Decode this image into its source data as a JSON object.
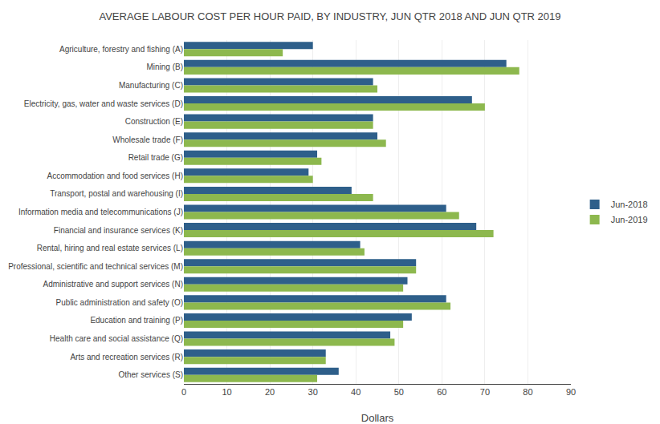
{
  "chart_data": {
    "type": "bar",
    "orientation": "horizontal",
    "title": "AVERAGE LABOUR COST PER HOUR PAID, BY INDUSTRY, JUN QTR 2018 AND JUN QTR 2019",
    "xlabel": "Dollars",
    "categories": [
      "Agriculture, forestry and fishing (A)",
      "Mining (B)",
      "Manufacturing (C)",
      "Electricity, gas, water and waste services (D)",
      "Construction (E)",
      "Wholesale trade (F)",
      "Retail trade (G)",
      "Accommodation and food services (H)",
      "Transport, postal and warehousing (I)",
      "Information media and telecommunications (J)",
      "Financial and insurance services (K)",
      "Rental, hiring and real estate services (L)",
      "Professional, scientific and technical services (M)",
      "Administrative and support services (N)",
      "Public administration and safety (O)",
      "Education and training (P)",
      "Health care and social assistance (Q)",
      "Arts and recreation services (R)",
      "Other services (S)"
    ],
    "series": [
      {
        "name": "Jun-2018",
        "color": "#2E5F8A",
        "values": [
          30,
          75,
          44,
          67,
          44,
          45,
          31,
          29,
          39,
          61,
          68,
          41,
          54,
          52,
          61,
          53,
          48,
          33,
          36
        ]
      },
      {
        "name": "Jun-2019",
        "color": "#8DB84E",
        "values": [
          23,
          78,
          45,
          70,
          44,
          47,
          32,
          30,
          44,
          64,
          72,
          42,
          54,
          51,
          62,
          51,
          49,
          33,
          31
        ]
      }
    ],
    "xlim": [
      0,
      90
    ],
    "xticks": [
      0,
      10,
      20,
      30,
      40,
      50,
      60,
      70,
      80,
      90
    ],
    "grid": true,
    "legend": "right"
  }
}
